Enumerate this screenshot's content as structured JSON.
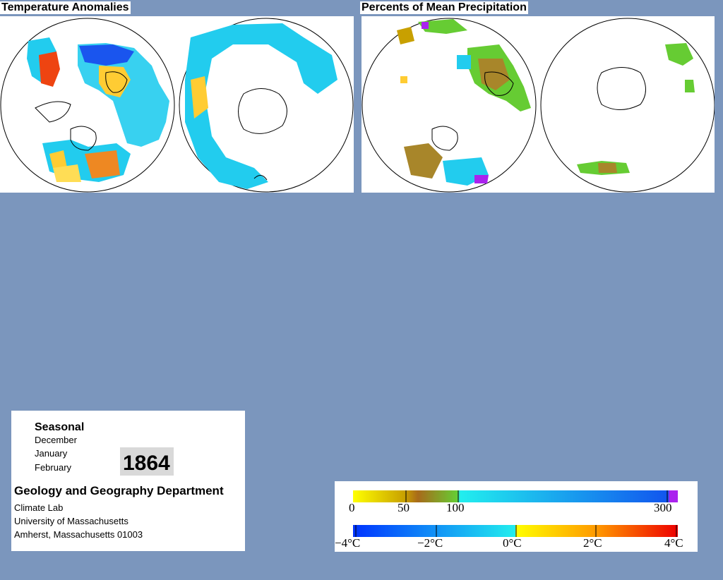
{
  "temperature_panel": {
    "title": "Temperature Anomalies"
  },
  "precipitation_panel": {
    "title": "Percents of Mean Precipitation"
  },
  "info": {
    "heading": "Seasonal",
    "months": [
      "December",
      "January",
      "February"
    ],
    "year": "1864",
    "department": "Geology and Geography Department",
    "address": [
      "Climate Lab",
      "University of Massachusetts",
      "Amherst, Massachusetts 01003"
    ]
  },
  "legend": {
    "precip_ticks": [
      "0",
      "50",
      "100",
      "300"
    ],
    "temp_ticks": [
      "−4°C",
      "−2°C",
      "0°C",
      "2°C",
      "4°C"
    ],
    "colors": {
      "yellow": "#ffee00",
      "olive": "#c8a000",
      "brown": "#a86a1a",
      "green": "#66cc33",
      "cyan": "#22ddee",
      "blue": "#1155ee",
      "purple": "#aa22ee",
      "orange": "#ff8800",
      "red": "#ee1100"
    }
  }
}
